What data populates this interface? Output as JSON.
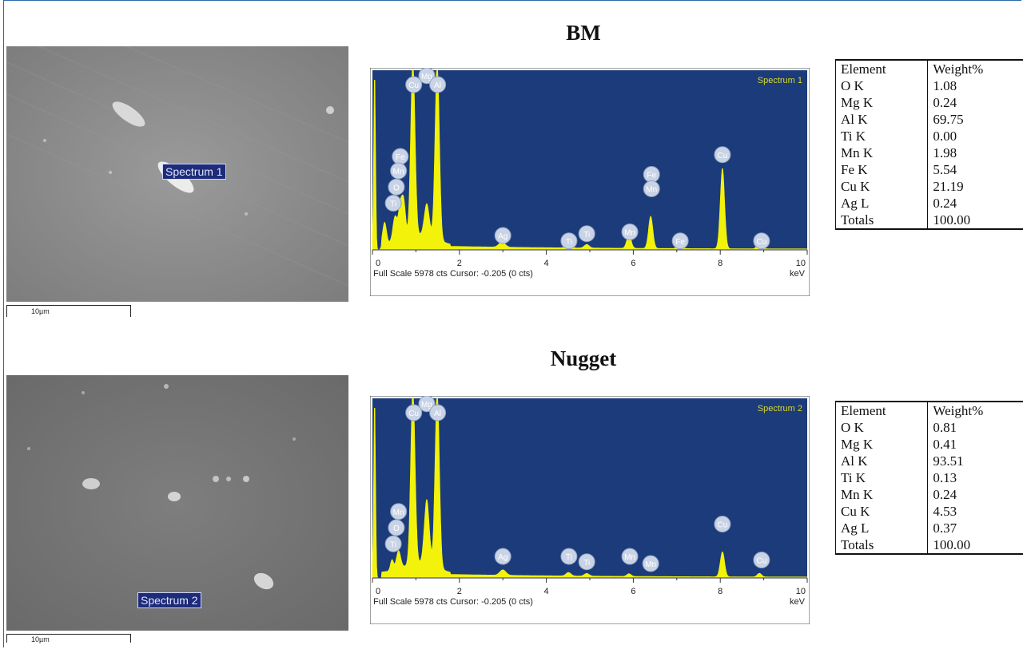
{
  "panels": [
    {
      "title": "BM",
      "sem": {
        "spectrum_label": "Spectrum 1",
        "scale_label": "10µm"
      },
      "table": {
        "headers": [
          "Element",
          "Weight%"
        ],
        "rows": [
          [
            "O K",
            "1.08"
          ],
          [
            "Mg K",
            "0.24"
          ],
          [
            "Al K",
            "69.75"
          ],
          [
            "Ti K",
            "0.00"
          ],
          [
            "Mn K",
            "1.98"
          ],
          [
            "Fe K",
            "5.54"
          ],
          [
            "Cu K",
            "21.19"
          ],
          [
            "Ag L",
            "0.24"
          ],
          [
            "Totals",
            "100.00"
          ]
        ]
      }
    },
    {
      "title": "Nugget",
      "sem": {
        "spectrum_label": "Spectrum 2",
        "scale_label": "10µm"
      },
      "table": {
        "headers": [
          "Element",
          "Weight%"
        ],
        "rows": [
          [
            "O K",
            "0.81"
          ],
          [
            "Mg K",
            "0.41"
          ],
          [
            "Al K",
            "93.51"
          ],
          [
            "Ti K",
            "0.13"
          ],
          [
            "Mn K",
            "0.24"
          ],
          [
            "Cu K",
            "4.53"
          ],
          [
            "Ag L",
            "0.37"
          ],
          [
            "Totals",
            "100.00"
          ]
        ]
      }
    }
  ],
  "chart_data": [
    {
      "type": "area",
      "title": "Spectrum 1",
      "xlabel": "keV",
      "footer": "Full Scale 5978 cts Cursor: -0.205  (0 cts)",
      "xlim": [
        0,
        10
      ],
      "ylim": [
        0,
        100
      ],
      "xticks": [
        0,
        2,
        4,
        6,
        8,
        10
      ],
      "colors": {
        "background": "#1b3b7a",
        "fill": "#f2f20a",
        "label": "#c9d3e6",
        "title": "#d8d830"
      },
      "peaks": [
        {
          "x": 0.05,
          "y": 100,
          "w": 0.03
        },
        {
          "x": 0.28,
          "y": 12,
          "w": 0.06
        },
        {
          "x": 0.52,
          "y": 14,
          "w": 0.07
        },
        {
          "x": 0.64,
          "y": 18,
          "w": 0.06
        },
        {
          "x": 0.72,
          "y": 20,
          "w": 0.06
        },
        {
          "x": 0.93,
          "y": 100,
          "w": 0.07
        },
        {
          "x": 1.25,
          "y": 18,
          "w": 0.08
        },
        {
          "x": 1.49,
          "y": 100,
          "w": 0.07
        },
        {
          "x": 2.98,
          "y": 3,
          "w": 0.1
        },
        {
          "x": 4.51,
          "y": 2,
          "w": 0.08
        },
        {
          "x": 4.93,
          "y": 2,
          "w": 0.08
        },
        {
          "x": 5.9,
          "y": 8,
          "w": 0.07
        },
        {
          "x": 6.4,
          "y": 18,
          "w": 0.07
        },
        {
          "x": 7.06,
          "y": 3,
          "w": 0.07
        },
        {
          "x": 8.05,
          "y": 45,
          "w": 0.07
        },
        {
          "x": 8.9,
          "y": 4,
          "w": 0.07
        }
      ],
      "labels": [
        {
          "text": "Mg",
          "x": 1.25,
          "y": 97
        },
        {
          "text": "Cu",
          "x": 0.95,
          "y": 92
        },
        {
          "text": "Al",
          "x": 1.5,
          "y": 92
        },
        {
          "text": "Fe",
          "x": 0.64,
          "y": 52
        },
        {
          "text": "Mn",
          "x": 0.6,
          "y": 44
        },
        {
          "text": "O",
          "x": 0.55,
          "y": 35
        },
        {
          "text": "Ti",
          "x": 0.48,
          "y": 26
        },
        {
          "text": "Ag",
          "x": 3.0,
          "y": 8
        },
        {
          "text": "Ti",
          "x": 4.52,
          "y": 5
        },
        {
          "text": "Ti",
          "x": 4.93,
          "y": 9
        },
        {
          "text": "Mn",
          "x": 5.92,
          "y": 10
        },
        {
          "text": "Fe",
          "x": 6.42,
          "y": 42
        },
        {
          "text": "Mn",
          "x": 6.42,
          "y": 34
        },
        {
          "text": "Fe",
          "x": 7.08,
          "y": 5
        },
        {
          "text": "Cu",
          "x": 8.05,
          "y": 53
        },
        {
          "text": "Cu",
          "x": 8.95,
          "y": 5
        }
      ]
    },
    {
      "type": "area",
      "title": "Spectrum 2",
      "xlabel": "keV",
      "footer": "Full Scale 5978 cts Cursor: -0.205  (0 cts)",
      "xlim": [
        0,
        10
      ],
      "ylim": [
        0,
        100
      ],
      "xticks": [
        0,
        2,
        4,
        6,
        8,
        10
      ],
      "colors": {
        "background": "#1b3b7a",
        "fill": "#f2f20a",
        "label": "#c9d3e6",
        "title": "#d8d830"
      },
      "peaks": [
        {
          "x": 0.05,
          "y": 100,
          "w": 0.03
        },
        {
          "x": 0.45,
          "y": 6,
          "w": 0.05
        },
        {
          "x": 0.6,
          "y": 10,
          "w": 0.07
        },
        {
          "x": 0.93,
          "y": 100,
          "w": 0.07
        },
        {
          "x": 1.25,
          "y": 36,
          "w": 0.08
        },
        {
          "x": 1.49,
          "y": 100,
          "w": 0.07
        },
        {
          "x": 3.0,
          "y": 3,
          "w": 0.1
        },
        {
          "x": 4.51,
          "y": 2,
          "w": 0.08
        },
        {
          "x": 4.93,
          "y": 1.5,
          "w": 0.08
        },
        {
          "x": 5.9,
          "y": 1.5,
          "w": 0.07
        },
        {
          "x": 8.05,
          "y": 14,
          "w": 0.07
        },
        {
          "x": 8.9,
          "y": 2,
          "w": 0.07
        }
      ],
      "labels": [
        {
          "text": "Mg",
          "x": 1.25,
          "y": 97
        },
        {
          "text": "Cu",
          "x": 0.95,
          "y": 92
        },
        {
          "text": "Al",
          "x": 1.5,
          "y": 92
        },
        {
          "text": "Mn",
          "x": 0.6,
          "y": 37
        },
        {
          "text": "O",
          "x": 0.55,
          "y": 28
        },
        {
          "text": "Ti",
          "x": 0.48,
          "y": 19
        },
        {
          "text": "Ag",
          "x": 3.0,
          "y": 12
        },
        {
          "text": "Ti",
          "x": 4.52,
          "y": 12
        },
        {
          "text": "Ti",
          "x": 4.93,
          "y": 9
        },
        {
          "text": "Mn",
          "x": 5.92,
          "y": 12
        },
        {
          "text": "Mn",
          "x": 6.4,
          "y": 8
        },
        {
          "text": "Cu",
          "x": 8.05,
          "y": 30
        },
        {
          "text": "Cu",
          "x": 8.95,
          "y": 10
        }
      ]
    }
  ]
}
